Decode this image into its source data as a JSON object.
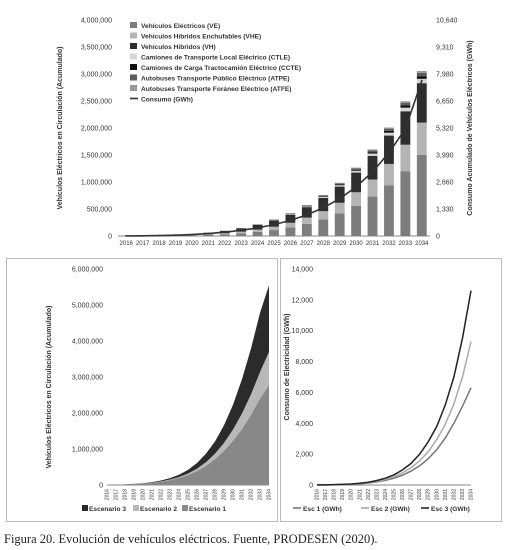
{
  "caption": "Figura 20. Evolución de vehículos eléctricos. Fuente, PRODESEN (2020).",
  "chart_data": [
    {
      "type": "bar",
      "title": "",
      "x": [
        "2016",
        "2017",
        "2018",
        "2019",
        "2020",
        "2021",
        "2022",
        "2023",
        "2024",
        "2025",
        "2026",
        "2027",
        "2028",
        "2029",
        "2030",
        "2031",
        "2032",
        "2033",
        "2034"
      ],
      "ylabel": "Vehículos Eléctricos en Circulación (Acumulado)",
      "ylabel2": "Consumo Acumulado de Vehículos Eléctricos (GWh)",
      "ylim": [
        0,
        4000000
      ],
      "y2lim": [
        0,
        10640
      ],
      "yticks": [
        "0",
        "500,000",
        "1,000,000",
        "1,500,000",
        "2,000,000",
        "2,500,000",
        "3,000,000",
        "3,500,000",
        "4,000,000"
      ],
      "y2ticks": [
        "0",
        "1,330",
        "2,660",
        "3,990",
        "5,320",
        "6,650",
        "7,980",
        "9,310",
        "10,640"
      ],
      "legend_position": "top-left",
      "stack_colors": [
        "#7d7d7d",
        "#b4b4b4",
        "#2e2e2e",
        "#d6d6d6",
        "#111111",
        "#5c5c5c",
        "#999999"
      ],
      "series": [
        {
          "name": "Vehículos Eléctricos (VE)",
          "values": [
            1000,
            2000,
            4000,
            7000,
            12000,
            20000,
            32000,
            50000,
            75000,
            110000,
            160000,
            225000,
            310000,
            420000,
            560000,
            730000,
            940000,
            1200000,
            1500000
          ]
        },
        {
          "name": "Vehículos Híbridos Enchufables (VHE)",
          "values": [
            1000,
            2000,
            3000,
            5000,
            8000,
            13000,
            20000,
            30000,
            44000,
            62000,
            85000,
            115000,
            150000,
            195000,
            250000,
            315000,
            395000,
            490000,
            600000
          ]
        },
        {
          "name": "Vehículos Híbridos (VH)",
          "values": [
            2000,
            4000,
            7000,
            11000,
            17000,
            27000,
            41000,
            60000,
            85000,
            115000,
            150000,
            195000,
            245000,
            300000,
            365000,
            440000,
            525000,
            620000,
            730000
          ]
        },
        {
          "name": "Camiones de Transporte Local Eléctrico (CTLE)",
          "values": [
            0,
            0,
            0,
            0,
            1000,
            1000,
            2000,
            3000,
            5000,
            7000,
            10000,
            14000,
            19000,
            25000,
            33000,
            42000,
            53000,
            66000,
            80000
          ]
        },
        {
          "name": "Camiones de Carga Tractocamión Eléctrico (CCTE)",
          "values": [
            0,
            0,
            0,
            0,
            0,
            1000,
            1000,
            2000,
            3000,
            4000,
            6000,
            8000,
            11000,
            15000,
            20000,
            26000,
            33000,
            41000,
            50000
          ]
        },
        {
          "name": "Autobuses Transporte Público Eléctrico (ATPE)",
          "values": [
            0,
            0,
            0,
            0,
            1000,
            1000,
            2000,
            3000,
            4000,
            6000,
            8000,
            11000,
            15000,
            20000,
            26000,
            33000,
            42000,
            52000,
            63000
          ]
        },
        {
          "name": "Autobuses Transporte Foráneo Eléctrico (ATFE)",
          "values": [
            0,
            0,
            0,
            0,
            0,
            0,
            1000,
            1000,
            2000,
            3000,
            4000,
            6000,
            8000,
            10000,
            13000,
            17000,
            21000,
            26000,
            32000
          ]
        }
      ],
      "line": {
        "name": "Consumo (GWh)",
        "values": [
          5,
          10,
          20,
          40,
          70,
          120,
          190,
          280,
          400,
          560,
          770,
          1040,
          1390,
          1840,
          2420,
          3160,
          4100,
          5280,
          7650
        ],
        "color": "#333333"
      }
    },
    {
      "type": "area",
      "title": "",
      "x": [
        "2016",
        "2017",
        "2018",
        "2019",
        "2020",
        "2021",
        "2022",
        "2023",
        "2024",
        "2025",
        "2026",
        "2027",
        "2028",
        "2029",
        "2030",
        "2031",
        "2032",
        "2033",
        "2034"
      ],
      "ylabel": "Vehículos Eléctricos en Circulación (Acumulado)",
      "ylim": [
        0,
        6000000
      ],
      "yticks": [
        "0",
        "1,000,000",
        "2,000,000",
        "3,000,000",
        "4,000,000",
        "5,000,000",
        "6,000,000"
      ],
      "legend_position": "bottom",
      "series": [
        {
          "name": "Escenario 3",
          "color": "#2b2b2b",
          "values": [
            5000,
            10000,
            18000,
            30000,
            50000,
            80000,
            125000,
            190000,
            285000,
            420000,
            610000,
            870000,
            1210000,
            1660000,
            2230000,
            2940000,
            3790000,
            4780000,
            5550000
          ]
        },
        {
          "name": "Escenario 2",
          "color": "#b8b8b8",
          "values": [
            4000,
            8000,
            15000,
            25000,
            42000,
            66000,
            102000,
            152000,
            222000,
            320000,
            455000,
            635000,
            870000,
            1170000,
            1540000,
            1990000,
            2520000,
            3140000,
            3700000
          ]
        },
        {
          "name": "Escenario 1",
          "color": "#888888",
          "values": [
            4000,
            7000,
            13000,
            22000,
            36000,
            57000,
            88000,
            130000,
            190000,
            270000,
            380000,
            525000,
            710000,
            940000,
            1220000,
            1550000,
            1940000,
            2390000,
            2770000
          ]
        }
      ]
    },
    {
      "type": "line",
      "title": "",
      "x": [
        "2016",
        "2017",
        "2018",
        "2019",
        "2020",
        "2021",
        "2022",
        "2023",
        "2024",
        "2025",
        "2026",
        "2027",
        "2028",
        "2029",
        "2030",
        "2031",
        "2032",
        "2033",
        "2034"
      ],
      "ylabel": "Consumo de Electricidad (GWh)",
      "ylim": [
        0,
        14000
      ],
      "yticks": [
        "0",
        "2,000",
        "4,000",
        "6,000",
        "8,000",
        "10,000",
        "12,000",
        "14,000"
      ],
      "legend_position": "bottom",
      "series": [
        {
          "name": "Esc 1 (GWh)",
          "color": "#777777",
          "values": [
            5,
            10,
            18,
            30,
            50,
            80,
            130,
            200,
            300,
            440,
            640,
            900,
            1250,
            1700,
            2300,
            3050,
            4000,
            5100,
            6300
          ]
        },
        {
          "name": "Esc 2 (GWh)",
          "color": "#aaaaaa",
          "values": [
            5,
            10,
            20,
            35,
            60,
            95,
            150,
            240,
            360,
            540,
            790,
            1120,
            1570,
            2150,
            2950,
            3950,
            5250,
            7000,
            9300
          ]
        },
        {
          "name": "Esc 3 (GWh)",
          "color": "#222222",
          "values": [
            5,
            12,
            22,
            40,
            68,
            110,
            180,
            290,
            440,
            660,
            980,
            1400,
            2000,
            2800,
            3800,
            5200,
            7000,
            9500,
            12600
          ]
        }
      ]
    }
  ]
}
